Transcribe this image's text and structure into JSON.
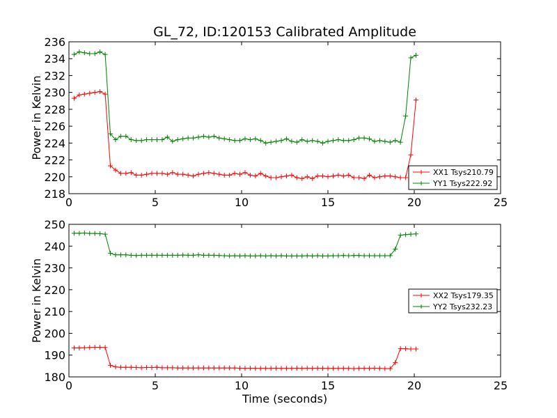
{
  "chart_data": [
    {
      "type": "line",
      "title": "GL_72, ID:120153 Calibrated Amplitude",
      "xlabel": "",
      "ylabel": "Power in Kelvin",
      "xlim": [
        0,
        25
      ],
      "ylim": [
        218,
        236
      ],
      "xticks": [
        0,
        5,
        10,
        15,
        20,
        25
      ],
      "yticks": [
        218,
        220,
        222,
        224,
        226,
        228,
        230,
        232,
        234,
        236
      ],
      "legend_position": "lower-right",
      "x": [
        0.3,
        0.6,
        0.9,
        1.2,
        1.5,
        1.8,
        2.1,
        2.4,
        2.7,
        3.0,
        3.3,
        3.6,
        3.9,
        4.2,
        4.5,
        4.8,
        5.1,
        5.4,
        5.7,
        6.0,
        6.3,
        6.6,
        6.9,
        7.2,
        7.5,
        7.8,
        8.1,
        8.4,
        8.7,
        9.0,
        9.3,
        9.6,
        9.9,
        10.2,
        10.5,
        10.8,
        11.1,
        11.4,
        11.7,
        12.0,
        12.3,
        12.6,
        12.9,
        13.2,
        13.5,
        13.8,
        14.1,
        14.4,
        14.7,
        15.0,
        15.3,
        15.6,
        15.9,
        16.2,
        16.5,
        16.8,
        17.1,
        17.4,
        17.7,
        18.0,
        18.3,
        18.6,
        18.9,
        19.2,
        19.5,
        19.8,
        20.1
      ],
      "series": [
        {
          "name": "XX1 Tsys210.79",
          "color": "#ff0000",
          "values": [
            229.3,
            229.7,
            229.8,
            229.9,
            230.0,
            230.1,
            229.8,
            221.3,
            220.8,
            220.4,
            220.4,
            220.5,
            220.2,
            220.2,
            220.3,
            220.4,
            220.4,
            220.4,
            220.3,
            220.5,
            220.3,
            220.3,
            220.2,
            220.1,
            220.3,
            220.4,
            220.5,
            220.4,
            220.3,
            220.2,
            220.2,
            220.4,
            220.3,
            220.5,
            220.2,
            220.1,
            220.4,
            220.1,
            219.9,
            219.9,
            220.0,
            220.1,
            220.2,
            219.9,
            219.8,
            220.0,
            219.8,
            220.1,
            220.1,
            220.0,
            220.1,
            220.2,
            220.1,
            220.2,
            219.9,
            219.9,
            219.8,
            220.2,
            219.9,
            220.0,
            220.1,
            220.1,
            220.0,
            219.9,
            219.9,
            222.6,
            229.1
          ]
        },
        {
          "name": "YY1 Tsys222.92",
          "color": "#008000",
          "values": [
            234.5,
            234.8,
            234.7,
            234.6,
            234.6,
            234.8,
            234.5,
            225.1,
            224.4,
            224.8,
            224.8,
            224.4,
            224.3,
            224.3,
            224.4,
            224.4,
            224.4,
            224.4,
            224.7,
            224.2,
            224.4,
            224.5,
            224.6,
            224.6,
            224.7,
            224.8,
            224.7,
            224.8,
            224.6,
            224.5,
            224.4,
            224.3,
            224.3,
            224.5,
            224.4,
            224.5,
            224.3,
            224.0,
            224.1,
            224.2,
            224.3,
            224.5,
            224.2,
            224.1,
            224.4,
            224.2,
            224.3,
            224.2,
            224.0,
            224.2,
            224.3,
            224.4,
            224.3,
            224.3,
            224.4,
            224.6,
            224.6,
            224.5,
            224.2,
            224.3,
            224.2,
            224.1,
            224.3,
            224.1,
            227.2,
            234.1,
            234.4
          ]
        }
      ]
    },
    {
      "type": "line",
      "title": "",
      "xlabel": "Time (seconds)",
      "ylabel": "Power in Kelvin",
      "xlim": [
        0,
        25
      ],
      "ylim": [
        180,
        250
      ],
      "xticks": [
        0,
        5,
        10,
        15,
        20,
        25
      ],
      "yticks": [
        180,
        190,
        200,
        210,
        220,
        230,
        240,
        250
      ],
      "legend_position": "center-right",
      "x": [
        0.3,
        0.6,
        0.9,
        1.2,
        1.5,
        1.8,
        2.1,
        2.4,
        2.7,
        3.0,
        3.3,
        3.6,
        3.9,
        4.2,
        4.5,
        4.8,
        5.1,
        5.4,
        5.7,
        6.0,
        6.3,
        6.6,
        6.9,
        7.2,
        7.5,
        7.8,
        8.1,
        8.4,
        8.7,
        9.0,
        9.3,
        9.6,
        9.9,
        10.2,
        10.5,
        10.8,
        11.1,
        11.4,
        11.7,
        12.0,
        12.3,
        12.6,
        12.9,
        13.2,
        13.5,
        13.8,
        14.1,
        14.4,
        14.7,
        15.0,
        15.3,
        15.6,
        15.9,
        16.2,
        16.5,
        16.8,
        17.1,
        17.4,
        17.7,
        18.0,
        18.3,
        18.6,
        18.9,
        19.2,
        19.5,
        19.8,
        20.1
      ],
      "series": [
        {
          "name": "XX2 Tsys179.35",
          "color": "#ff0000",
          "values": [
            193.3,
            193.3,
            193.4,
            193.5,
            193.6,
            193.6,
            193.5,
            185.3,
            184.6,
            184.4,
            184.4,
            184.4,
            184.3,
            184.2,
            184.3,
            184.3,
            184.4,
            184.2,
            184.2,
            184.2,
            184.1,
            184.1,
            184.1,
            184.1,
            184.1,
            184.1,
            184.1,
            184.1,
            184.1,
            184.1,
            184.1,
            184.1,
            184.0,
            183.9,
            184.0,
            183.9,
            183.9,
            183.9,
            183.9,
            184.0,
            183.9,
            183.9,
            183.9,
            184.0,
            183.9,
            184.0,
            183.9,
            184.0,
            183.9,
            183.9,
            183.9,
            183.9,
            183.9,
            183.9,
            183.8,
            183.9,
            183.9,
            183.9,
            184.0,
            183.9,
            183.8,
            183.8,
            186.5,
            193.0,
            192.9,
            192.8,
            192.8
          ]
        },
        {
          "name": "YY2 Tsys232.23",
          "color": "#008000",
          "values": [
            245.9,
            245.9,
            246.0,
            245.8,
            245.8,
            245.7,
            245.5,
            236.7,
            236.0,
            236.0,
            236.0,
            235.8,
            235.7,
            235.8,
            235.8,
            235.8,
            235.8,
            235.8,
            235.8,
            235.8,
            235.8,
            235.9,
            235.8,
            235.8,
            236.0,
            235.8,
            235.8,
            235.8,
            235.7,
            235.6,
            235.5,
            235.6,
            235.5,
            235.6,
            235.5,
            235.5,
            235.6,
            235.5,
            235.6,
            235.5,
            235.6,
            235.5,
            235.5,
            235.5,
            235.5,
            235.6,
            235.5,
            235.6,
            235.5,
            235.5,
            235.6,
            235.6,
            235.7,
            235.6,
            235.7,
            235.7,
            235.6,
            235.6,
            235.6,
            235.6,
            235.6,
            235.6,
            238.6,
            245.0,
            245.3,
            245.5,
            245.6
          ]
        }
      ]
    }
  ]
}
